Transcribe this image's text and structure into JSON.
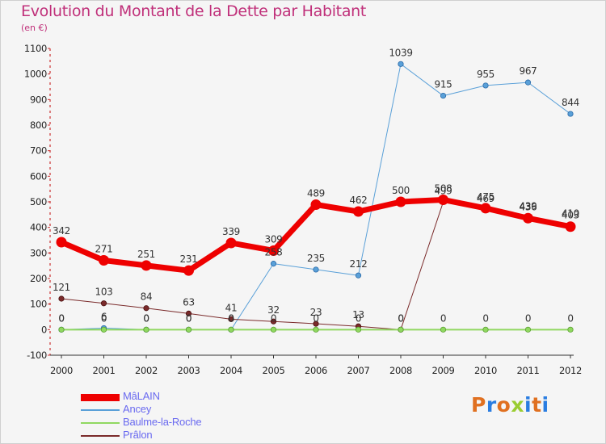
{
  "title": "Evolution du Montant de la Dette par Habitant",
  "subtitle": "(en €)",
  "brand": {
    "text": "Proxiti",
    "colors": [
      "#e07020",
      "#2a7de1",
      "#e07020",
      "#9acd32",
      "#2a7de1",
      "#e07020",
      "#2a7de1"
    ]
  },
  "chart_data": {
    "type": "line",
    "categories": [
      "2000",
      "2001",
      "2002",
      "2003",
      "2004",
      "2005",
      "2006",
      "2007",
      "2008",
      "2009",
      "2010",
      "2011",
      "2012"
    ],
    "ylim": [
      -100,
      1100
    ],
    "yticks": [
      -100,
      0,
      100,
      200,
      300,
      400,
      500,
      600,
      700,
      800,
      900,
      1000,
      1100
    ],
    "grid": false,
    "legend_position": "bottom-left",
    "series": [
      {
        "name": "MâLAIN",
        "color": "#ee0000",
        "line_width": 7,
        "values": [
          342,
          271,
          251,
          231,
          339,
          309,
          489,
          462,
          500,
          508,
          475,
          436,
          403
        ],
        "labels": [
          "342",
          "271",
          "251",
          "231",
          "339",
          "309",
          "489",
          "462",
          "500",
          "508",
          "475",
          "436",
          "403"
        ]
      },
      {
        "name": "Ancey",
        "color": "#5aa0d8",
        "line_width": 1,
        "values": [
          0,
          6,
          0,
          0,
          0,
          258,
          235,
          212,
          1039,
          915,
          955,
          967,
          844
        ],
        "labels": [
          "0",
          "6",
          "0",
          "0",
          "0",
          "258",
          "235",
          "212",
          "1039",
          "915",
          "955",
          "967",
          "844"
        ]
      },
      {
        "name": "Baulme-la-Roche",
        "color": "#90d860",
        "line_width": 2,
        "values": [
          0,
          0,
          0,
          0,
          0,
          0,
          0,
          0,
          0,
          0,
          0,
          0,
          0
        ],
        "labels": [
          "0",
          "0",
          "0",
          "0",
          "0",
          "0",
          "0",
          "0",
          "0",
          "0",
          "0",
          "0",
          "0"
        ]
      },
      {
        "name": "Prâlon",
        "color": "#7a2a2a",
        "line_width": 1,
        "values": [
          121,
          103,
          84,
          63,
          41,
          32,
          23,
          13,
          0,
          499,
          469,
          439,
          410
        ],
        "labels": [
          "121",
          "103",
          "84",
          "63",
          "41",
          "32",
          "23",
          "13",
          "0",
          "499",
          "469",
          "439",
          "410"
        ]
      }
    ]
  }
}
